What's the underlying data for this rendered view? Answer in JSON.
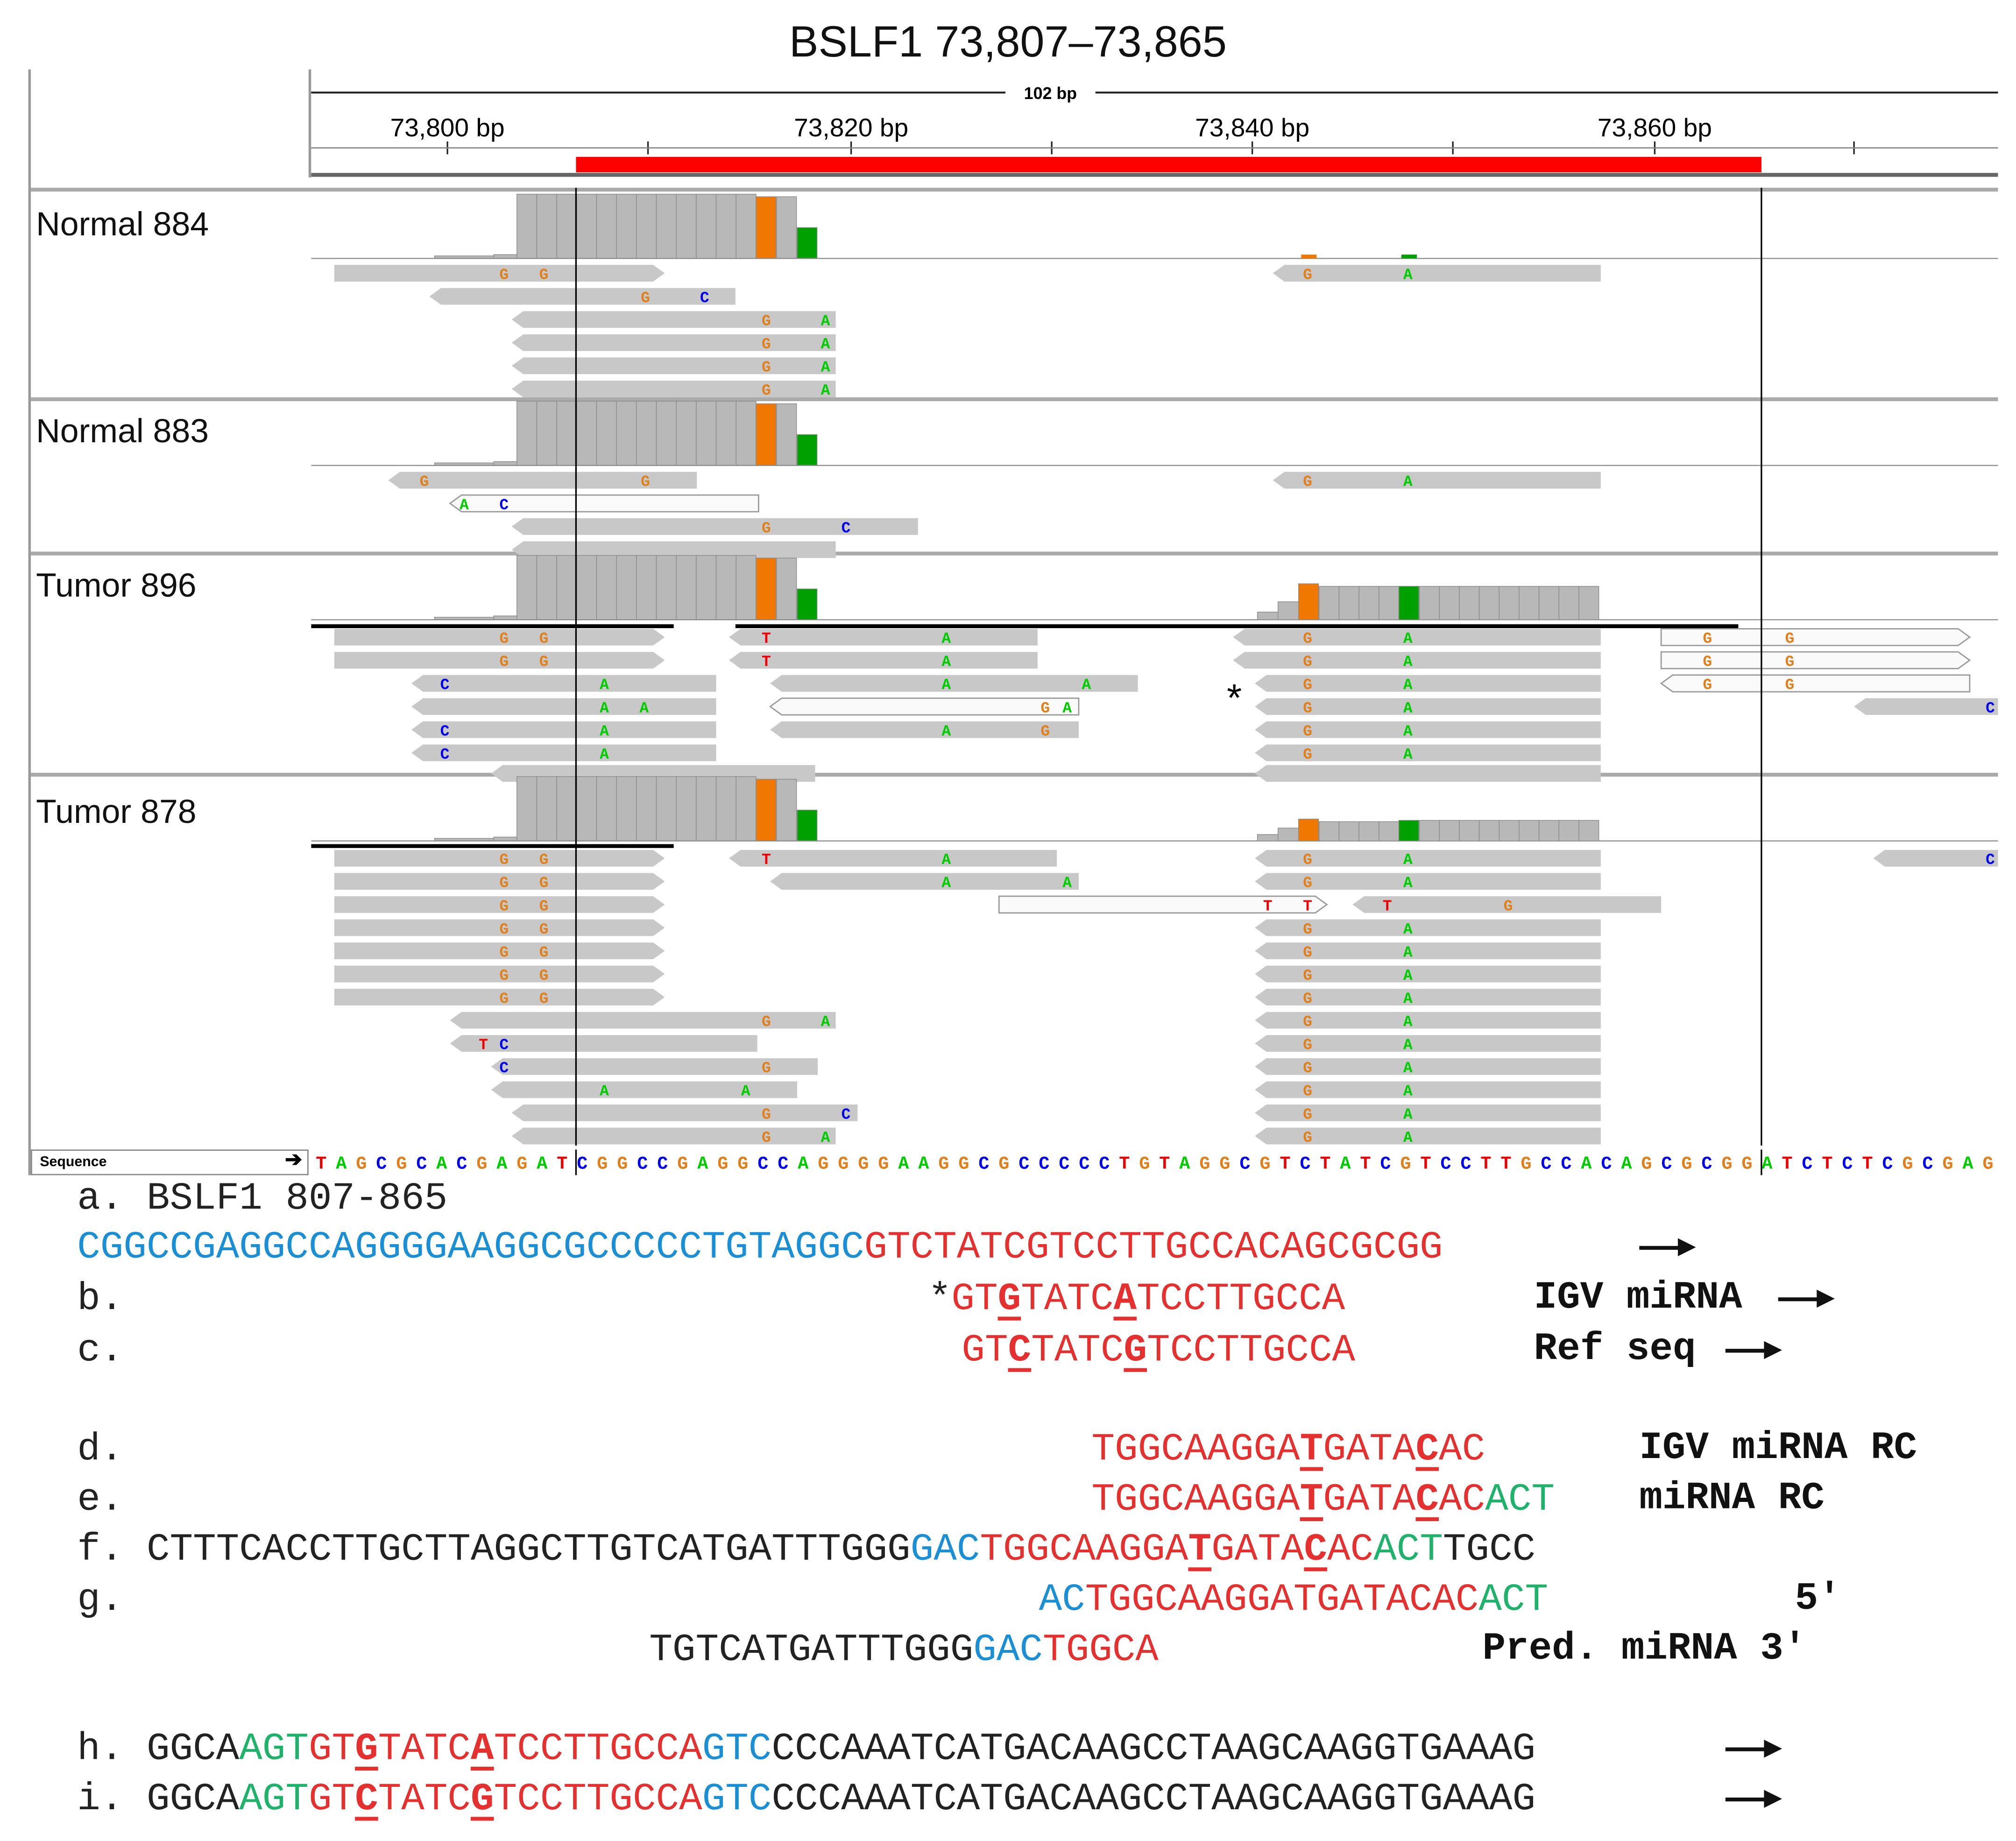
{
  "figure_title": "BSLF1 73,807–73,865",
  "igv": {
    "ruler": {
      "span_label": "102 bp",
      "ticks": [
        "73,800 bp",
        "73,820 bp",
        "73,840 bp",
        "73,860 bp"
      ],
      "region_color": "#ff0000"
    },
    "tracks": [
      {
        "name": "Normal 884"
      },
      {
        "name": "Normal 883"
      },
      {
        "name": "Tumor 896"
      },
      {
        "name": "Tumor 878"
      }
    ],
    "star_marker": "*",
    "sequence_label": "Sequence",
    "sequence_arrow": "➔",
    "reference_sequence": "TAGCGCACGAGATCGGCCGAGGCCAGGGGAAGGCGCCCCCTGTAGGCGTCTATCGTCCTTGCCACAGCGCGGATCTCTCGCGAG",
    "base_colors": {
      "A": "#00cc00",
      "C": "#0000ee",
      "G": "#e0801c",
      "T": "#ee0000"
    },
    "coverage_colors": {
      "gray": "#b8b8b8",
      "orange": "#f07800",
      "green": "#00a000"
    }
  },
  "alignment": {
    "a_title": "BSLF1 807-865",
    "a_seq_blue": "CGGCCGAGGCCAGGGGAAGGCGCCCCCTGTAGGC",
    "a_seq_red": "GTCTATCGTCCTTGCCACAGCGCGG",
    "b": {
      "star": "*",
      "p1": "GT",
      "v1": "G",
      "p2": "TATC",
      "v2": "A",
      "p3": "TCCTTGCCA",
      "label": "IGV miRNA"
    },
    "c": {
      "p1": "GT",
      "v1": "C",
      "p2": "TATC",
      "v2": "G",
      "p3": "TCCTTGCCA",
      "label": "Ref seq"
    },
    "d": {
      "p1": "TGGCAAGGA",
      "v1": "T",
      "p2": "GATA",
      "v2": "C",
      "p3": "AC",
      "label": "IGV miRNA RC"
    },
    "e": {
      "p1": "TGGCAAGGA",
      "v1": "T",
      "p2": "GATA",
      "v2": "C",
      "p3": "AC",
      "p4": "ACT",
      "label": "miRNA RC"
    },
    "f": {
      "p0": "CTTTCACCTTGCTTAGGCTTGTCATGATTTGGG",
      "b1": "GAC",
      "p1": "TGGCAAGGA",
      "v1": "T",
      "p2": "GATA",
      "v2": "C",
      "p3": "AC",
      "g1": "ACT",
      "p4": "TGCC"
    },
    "g": {
      "b1": "AC",
      "r1": "TGGCAAGGATGATACAC",
      "g1": "ACT",
      "end": "5′"
    },
    "g2": {
      "k1": "TGTCATGATTTGGG",
      "b1": "GAC",
      "r1": "TGGCA",
      "label": "Pred. miRNA 3′"
    },
    "h": {
      "k1": "GGCA",
      "g1": "AGT",
      "r1": "GT",
      "v1": "G",
      "r2": "TATC",
      "v2": "A",
      "r3": "TCCTTGCCA",
      "b1": "GTC",
      "k2": "CCCAAATCATGACAAGCCTAAGCAAGGTGAAAG"
    },
    "i": {
      "k1": "GGCA",
      "g1": "AGT",
      "r1": "GT",
      "v1": "C",
      "r2": "TATC",
      "v2": "G",
      "r3": "TCCTTGCCA",
      "b1": "GTC",
      "k2": "CCCAAATCATGACAAGCCTAAGCAAGGTGAAAG"
    },
    "row_labels": [
      "a.",
      "b.",
      "c.",
      "d.",
      "e.",
      "f.",
      "g.",
      "h.",
      "i."
    ]
  }
}
